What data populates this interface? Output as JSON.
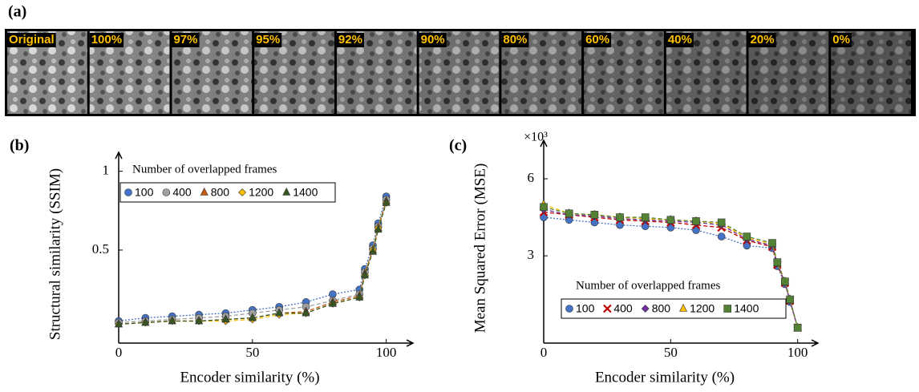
{
  "figure_a": {
    "label": "(a)",
    "tiles": [
      "Original",
      "100%",
      "97%",
      "95%",
      "92%",
      "90%",
      "80%",
      "60%",
      "40%",
      "20%",
      "0%"
    ]
  },
  "chart_data": [
    {
      "type": "line",
      "panel_label": "(b)",
      "x_label": "Encoder similarity (%)",
      "y_label": "Structural similarity (SSIM)",
      "legend_title": "Number of overlapped frames",
      "x": [
        0,
        10,
        20,
        30,
        40,
        50,
        60,
        70,
        80,
        90,
        92,
        95,
        97,
        100
      ],
      "xlim": [
        0,
        110
      ],
      "xticks": [
        0,
        50,
        100
      ],
      "ylim": [
        -0.09,
        1.12
      ],
      "yticks": [
        0.5,
        1
      ],
      "grid": false,
      "series": [
        {
          "name": "100",
          "color": "#4472c4",
          "marker": "circle",
          "values": [
            0.05,
            0.07,
            0.08,
            0.09,
            0.1,
            0.12,
            0.14,
            0.17,
            0.22,
            0.25,
            0.38,
            0.53,
            0.67,
            0.84
          ]
        },
        {
          "name": "400",
          "color": "#a0a0a0",
          "marker": "circle",
          "values": [
            0.04,
            0.05,
            0.06,
            0.07,
            0.08,
            0.1,
            0.12,
            0.14,
            0.18,
            0.22,
            0.36,
            0.51,
            0.65,
            0.82
          ]
        },
        {
          "name": "800",
          "color": "#c55a11",
          "marker": "triangle",
          "values": [
            0.03,
            0.04,
            0.05,
            0.05,
            0.06,
            0.07,
            0.1,
            0.11,
            0.17,
            0.21,
            0.35,
            0.5,
            0.64,
            0.81
          ]
        },
        {
          "name": "1200",
          "color": "#ffc000",
          "marker": "diamond",
          "values": [
            0.03,
            0.04,
            0.05,
            0.05,
            0.05,
            0.06,
            0.09,
            0.1,
            0.16,
            0.2,
            0.34,
            0.5,
            0.64,
            0.8
          ]
        },
        {
          "name": "1400",
          "color": "#375623",
          "marker": "triangle",
          "values": [
            0.03,
            0.04,
            0.05,
            0.05,
            0.06,
            0.07,
            0.1,
            0.1,
            0.16,
            0.2,
            0.34,
            0.49,
            0.63,
            0.8
          ]
        }
      ]
    },
    {
      "type": "line",
      "panel_label": "(c)",
      "x_label": "Encoder similarity (%)",
      "y_label": "Mean Squared Error (MSE)",
      "y_annotation": "×10³",
      "legend_title": "Number of overlapped frames",
      "x": [
        0,
        10,
        20,
        30,
        40,
        50,
        60,
        70,
        80,
        90,
        92,
        95,
        97,
        100
      ],
      "xlim": [
        0,
        108
      ],
      "xticks": [
        0,
        50,
        100
      ],
      "ylim": [
        -0.4,
        7.5
      ],
      "yticks": [
        3,
        6
      ],
      "grid": false,
      "series": [
        {
          "name": "100",
          "color": "#4472c4",
          "marker": "circle",
          "values": [
            4.5,
            4.4,
            4.3,
            4.2,
            4.15,
            4.1,
            4.0,
            3.75,
            3.4,
            3.3,
            2.6,
            1.9,
            1.2,
            0.2
          ]
        },
        {
          "name": "400",
          "color": "#c00000",
          "marker": "cross",
          "values": [
            4.7,
            4.6,
            4.5,
            4.4,
            4.35,
            4.3,
            4.2,
            4.1,
            3.6,
            3.35,
            2.65,
            1.95,
            1.25,
            0.2
          ]
        },
        {
          "name": "800",
          "color": "#7030a0",
          "marker": "diamond",
          "values": [
            4.8,
            4.6,
            4.55,
            4.45,
            4.4,
            4.35,
            4.3,
            4.2,
            3.65,
            3.4,
            2.7,
            1.95,
            1.25,
            0.2
          ]
        },
        {
          "name": "1200",
          "color": "#ffc000",
          "marker": "triangle",
          "values": [
            5.0,
            4.65,
            4.6,
            4.5,
            4.45,
            4.4,
            4.35,
            4.25,
            3.7,
            3.45,
            2.7,
            2.0,
            1.3,
            0.2
          ]
        },
        {
          "name": "1400",
          "color": "#548235",
          "marker": "square",
          "values": [
            4.9,
            4.65,
            4.6,
            4.5,
            4.5,
            4.4,
            4.35,
            4.3,
            3.75,
            3.5,
            2.75,
            2.0,
            1.3,
            0.2
          ]
        }
      ]
    }
  ]
}
